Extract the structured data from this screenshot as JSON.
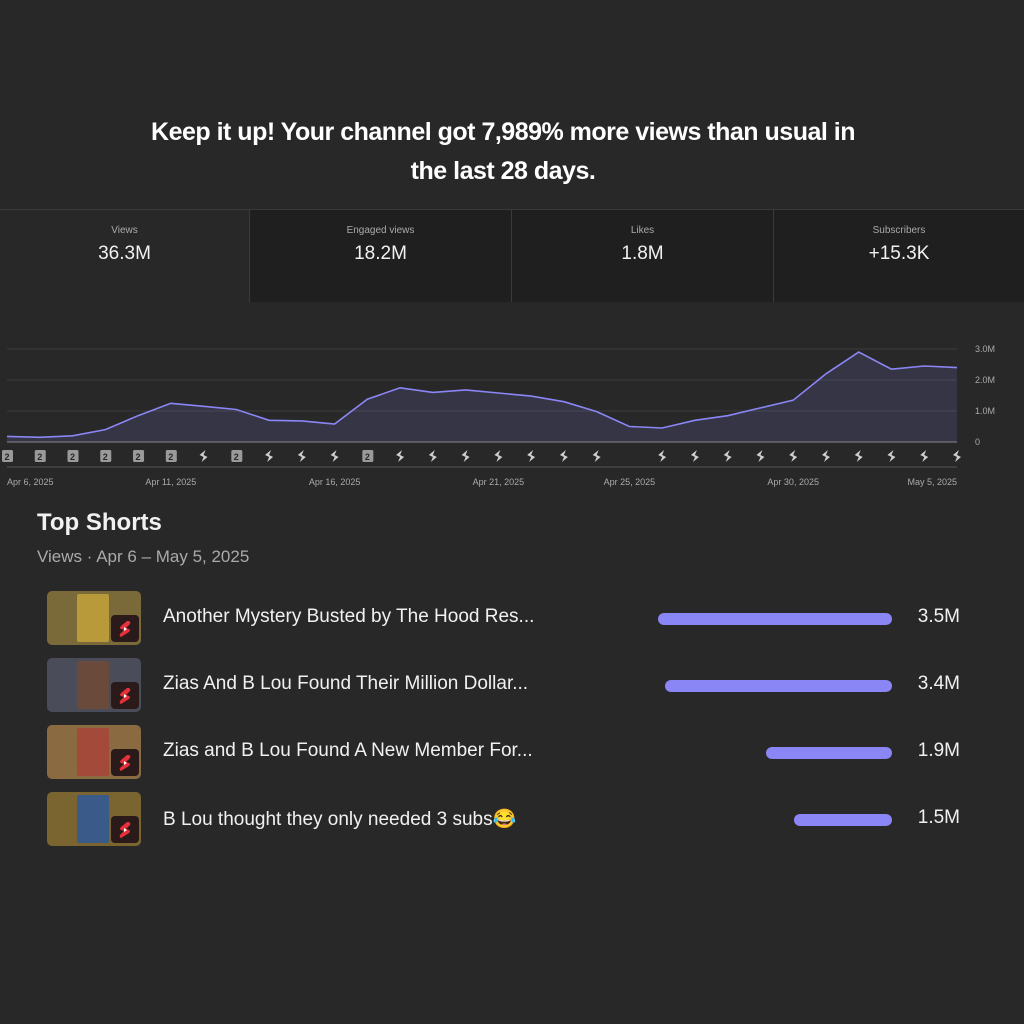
{
  "headline": {
    "line1": "Keep it up! Your channel got 7,989% more views than usual in",
    "line2": "the last 28 days."
  },
  "stats": [
    {
      "label": "Views",
      "value": "36.3M"
    },
    {
      "label": "Engaged views",
      "value": "18.2M"
    },
    {
      "label": "Likes",
      "value": "1.8M"
    },
    {
      "label": "Subscribers",
      "value": "+15.3K"
    }
  ],
  "chart_data": {
    "type": "area",
    "title": "",
    "xlabel": "",
    "ylabel": "",
    "x_tick_labels": [
      "Apr 6, 2025",
      "Apr 11, 2025",
      "Apr 16, 2025",
      "Apr 21, 2025",
      "Apr 25, 2025",
      "Apr 30, 2025",
      "May 5, 2025"
    ],
    "y_tick_labels": [
      "0",
      "1.0M",
      "2.0M",
      "3.0M"
    ],
    "y_ticks": [
      0,
      1000000,
      2000000,
      3000000
    ],
    "ylim": [
      0,
      3000000
    ],
    "grid": true,
    "color": "#8b86f5",
    "series": [
      {
        "values": [
          180000,
          150000,
          200000,
          400000,
          850000,
          1250000,
          1150000,
          1050000,
          700000,
          680000,
          580000,
          1380000,
          1750000,
          1600000,
          1680000,
          1580000,
          1480000,
          1300000,
          980000,
          500000,
          450000,
          700000,
          850000,
          1100000,
          1350000,
          2200000,
          2900000,
          2350000,
          2450000,
          2400000
        ]
      }
    ],
    "markers": [
      "2",
      "2",
      "2",
      "2",
      "2",
      "2",
      "shorts",
      "2",
      "shorts",
      "shorts",
      "shorts",
      "2",
      "shorts",
      "shorts",
      "shorts",
      "shorts",
      "shorts",
      "shorts",
      "shorts",
      "",
      "shorts",
      "shorts",
      "shorts",
      "shorts",
      "shorts",
      "shorts",
      "shorts",
      "shorts",
      "shorts",
      "shorts"
    ]
  },
  "top_shorts": {
    "title": "Top Shorts",
    "subtitle": "Views · Apr 6 – May 5, 2025",
    "items": [
      {
        "title": "Another Mystery Busted by The Hood Res...",
        "views": "3.5M",
        "share": 1.0,
        "thumb_bg": "#7a6a3a",
        "photo_bg": "#b89a3a"
      },
      {
        "title": "Zias And B Lou Found Their Million Dollar...",
        "views": "3.4M",
        "share": 0.97,
        "thumb_bg": "#4a4c5a",
        "photo_bg": "#6a4a3a"
      },
      {
        "title": "Zias and B Lou Found A New Member For...",
        "views": "1.9M",
        "share": 0.54,
        "thumb_bg": "#8a6a40",
        "photo_bg": "#a44a3a"
      },
      {
        "title": "B Lou thought they only needed 3 subs😂",
        "views": "1.5M",
        "share": 0.42,
        "thumb_bg": "#7a6430",
        "photo_bg": "#3a5a8a"
      }
    ]
  }
}
